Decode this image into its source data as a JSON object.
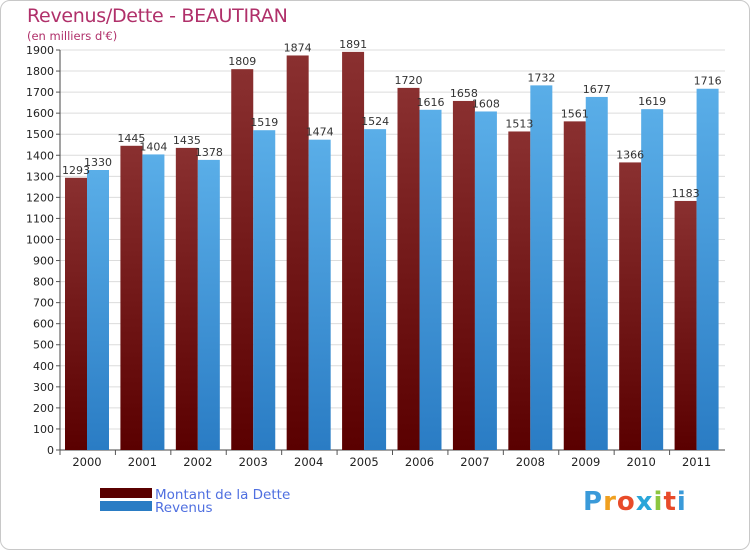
{
  "chart_data": {
    "type": "bar",
    "title": "Revenus/Dette - BEAUTIRAN",
    "subtitle": "(en milliers d'€)",
    "categories": [
      "2000",
      "2001",
      "2002",
      "2003",
      "2004",
      "2005",
      "2006",
      "2007",
      "2008",
      "2009",
      "2010",
      "2011"
    ],
    "series": [
      {
        "name": "Montant de la Dette",
        "values": [
          1293,
          1445,
          1435,
          1809,
          1874,
          1891,
          1720,
          1658,
          1513,
          1561,
          1366,
          1183
        ],
        "color_top": "#8a3030",
        "color_bottom": "#5a0000"
      },
      {
        "name": "Revenus",
        "values": [
          1330,
          1404,
          1378,
          1519,
          1474,
          1524,
          1616,
          1608,
          1732,
          1677,
          1619,
          1716
        ],
        "color_top": "#5aaee8",
        "color_bottom": "#2a7cc4"
      }
    ],
    "ylim": [
      0,
      1900
    ],
    "ytick_step": 100,
    "grid": true,
    "legend_position": "bottom-left",
    "xlabel": "",
    "ylabel": ""
  },
  "brand": {
    "logo_letters": [
      "P",
      "r",
      "o",
      "x",
      "i",
      "t",
      "i"
    ],
    "logo_colors": [
      "#3a9ad9",
      "#f0a020",
      "#e84b2a",
      "#2aa6d9",
      "#8cc63f",
      "#e84b2a",
      "#3a9ad9"
    ]
  }
}
